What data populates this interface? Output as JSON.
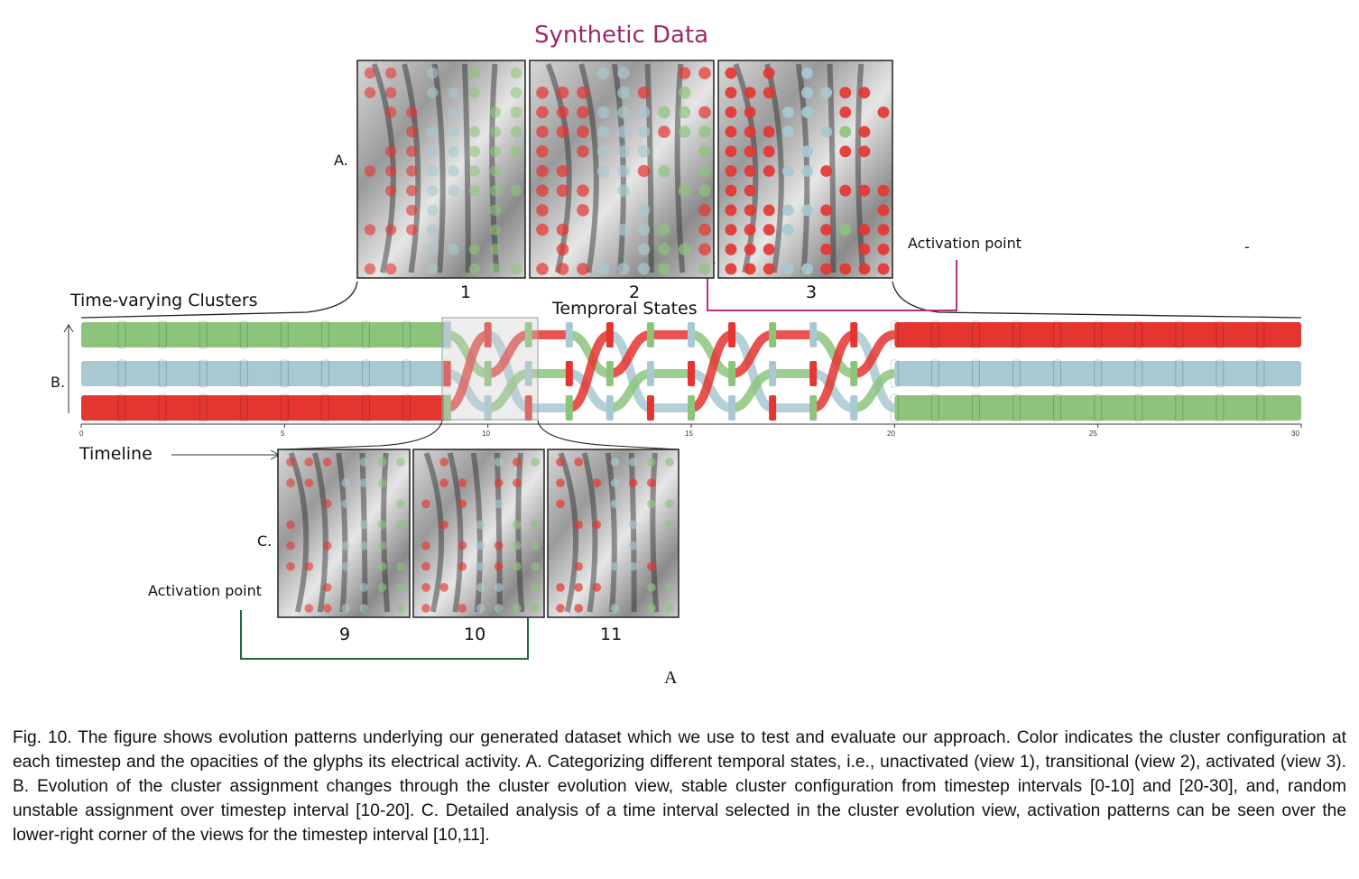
{
  "title": "Synthetic Data",
  "labels": {
    "section_a": "A.",
    "section_b": "B.",
    "section_c": "C.",
    "time_varying": "Time-varying Clusters",
    "temporal_states": "Temproral States",
    "timeline": "Timeline",
    "activation_top": "Activation point",
    "activation_bottom": "Activation point",
    "subfig": "A",
    "dash": "-"
  },
  "views_top": [
    "1",
    "2",
    "3"
  ],
  "views_bottom": [
    "9",
    "10",
    "11"
  ],
  "timeline_ticks": [
    "0",
    "5",
    "10",
    "15",
    "20",
    "25",
    "30"
  ],
  "colors": {
    "green": "#8cc47c",
    "blue": "#a8c8d2",
    "red": "#e53530",
    "magenta": "#b8327a",
    "darkgreen": "#1e6a3c"
  },
  "caption": "Fig. 10. The figure shows evolution patterns underlying our generated dataset which we use to test and evaluate our approach. Color indicates the cluster configuration at each timestep and the opacities of the glyphs its electrical activity. A. Categorizing different temporal states, i.e., unactivated (view 1), transitional (view 2), activated (view 3). B. Evolution of the cluster assignment changes through the cluster evolution view, stable cluster configuration from timestep intervals [0-10] and [20-30], and, random unstable assignment over timestep interval [10-20]. C. Detailed analysis of a time interval selected in the cluster evolution view, activation patterns can be seen over the lower-right corner of the views for the timestep interval [10,11]."
}
